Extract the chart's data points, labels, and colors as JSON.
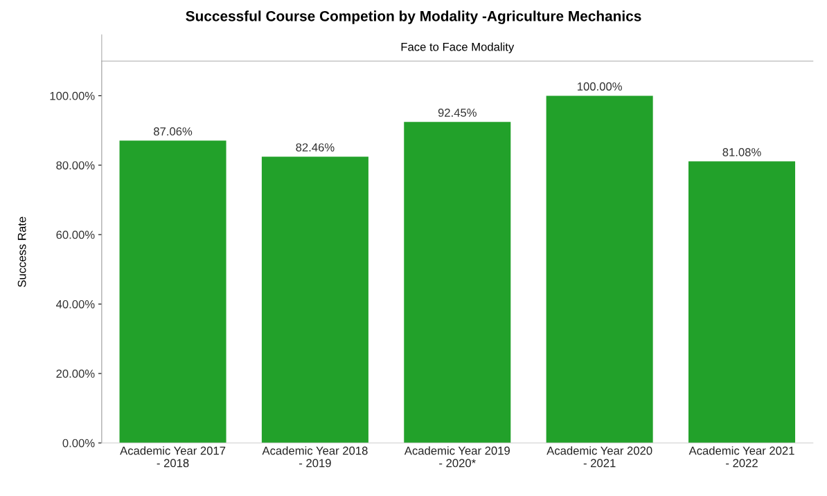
{
  "chart_data": {
    "type": "bar",
    "title": "Successful Course Competion by Modality -Agriculture Mechanics",
    "subtitle": "Face to Face Modality",
    "ylabel": "Success Rate",
    "categories": [
      "Academic Year 2017\n- 2018",
      "Academic Year 2018\n- 2019",
      "Academic Year 2019\n- 2020*",
      "Academic Year 2020\n- 2021",
      "Academic Year 2021\n- 2022"
    ],
    "values": [
      87.06,
      82.46,
      92.45,
      100.0,
      81.08
    ],
    "value_labels": [
      "87.06%",
      "82.46%",
      "92.45%",
      "100.00%",
      "81.08%"
    ],
    "color": "#22a12a",
    "ylim": [
      0,
      110
    ],
    "yticks": [
      {
        "value": 0,
        "label": "0.00%"
      },
      {
        "value": 20,
        "label": "20.00%"
      },
      {
        "value": 40,
        "label": "40.00%"
      },
      {
        "value": 60,
        "label": "60.00%"
      },
      {
        "value": 80,
        "label": "80.00%"
      },
      {
        "value": 100,
        "label": "100.00%"
      }
    ],
    "grid": false
  }
}
